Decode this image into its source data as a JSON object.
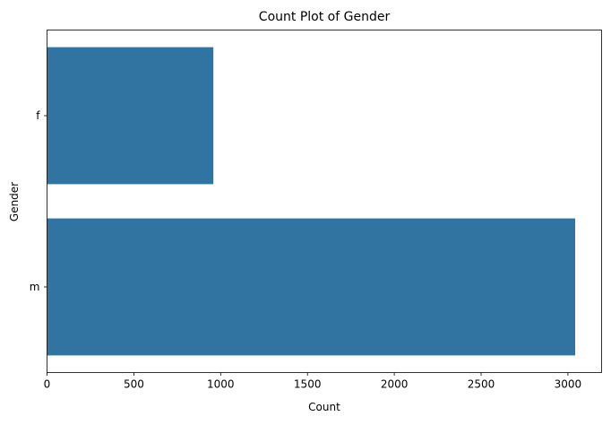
{
  "chart_data": {
    "type": "bar",
    "orientation": "horizontal",
    "title": "Count Plot of Gender",
    "xlabel": "Count",
    "ylabel": "Gender",
    "categories": [
      "f",
      "m"
    ],
    "values": [
      958,
      3042
    ],
    "xlim": [
      0,
      3194
    ],
    "xticks": [
      0,
      500,
      1000,
      1500,
      2000,
      2500,
      3000
    ],
    "grid": false,
    "legend": "none",
    "bar_color": "#3274a1"
  }
}
